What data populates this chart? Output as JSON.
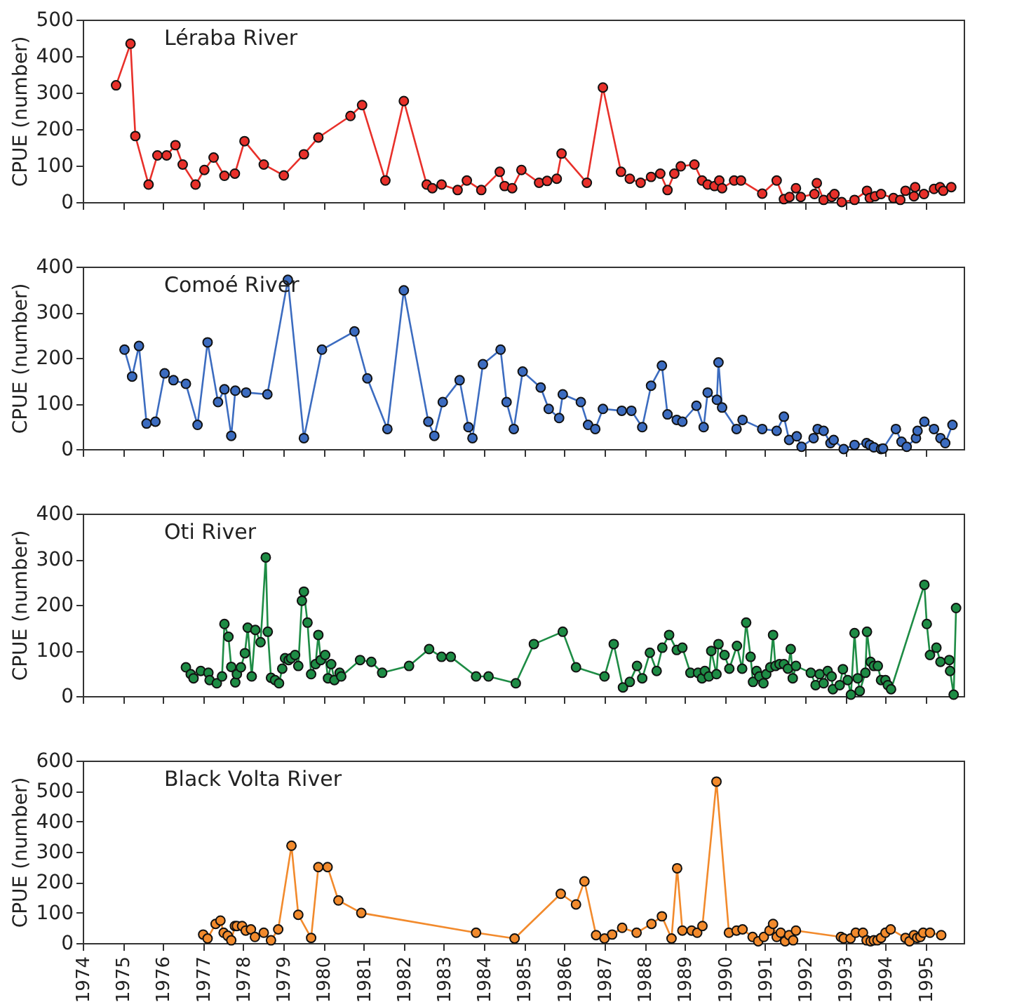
{
  "chart_data": [
    {
      "type": "line",
      "ylabel": "CPUE (number)",
      "xlim": [
        1974,
        1995.95
      ],
      "xticks": [
        1974,
        1975,
        1976,
        1977,
        1978,
        1979,
        1980,
        1981,
        1982,
        1983,
        1984,
        1985,
        1986,
        1987,
        1988,
        1989,
        1990,
        1991,
        1992,
        1993,
        1994,
        1995
      ],
      "ylim": [
        0,
        500
      ],
      "yticks": [
        0,
        100,
        200,
        300,
        400,
        500
      ],
      "tick_labels": "y",
      "grid": false,
      "legend": false,
      "marker": "circle",
      "line_style": "solid",
      "x": [
        1974.83,
        1975.19,
        1975.31,
        1975.64,
        1975.86,
        1976.09,
        1976.31,
        1976.49,
        1976.81,
        1977.03,
        1977.26,
        1977.53,
        1977.79,
        1978.03,
        1978.51,
        1979.01,
        1979.51,
        1979.87,
        1980.67,
        1980.96,
        1981.54,
        1982.0,
        1982.57,
        1982.71,
        1982.94,
        1983.34,
        1983.57,
        1983.93,
        1984.39,
        1984.51,
        1984.7,
        1984.93,
        1985.37,
        1985.57,
        1985.81,
        1985.93,
        1986.56,
        1986.96,
        1987.41,
        1987.63,
        1987.9,
        1988.16,
        1988.39,
        1988.57,
        1988.74,
        1988.9,
        1989.24,
        1989.43,
        1989.57,
        1989.74,
        1989.86,
        1989.93,
        1990.23,
        1990.4,
        1990.93,
        1991.29,
        1991.47,
        1991.61,
        1991.77,
        1991.89,
        1992.23,
        1992.29,
        1992.46,
        1992.66,
        1992.73,
        1992.91,
        1993.23,
        1993.54,
        1993.61,
        1993.74,
        1993.89,
        1994.2,
        1994.37,
        1994.5,
        1994.71,
        1994.74,
        1994.96,
        1995.21,
        1995.36,
        1995.44,
        1995.64
      ],
      "series": [
        {
          "name": "Léraba River",
          "color": "#e8302a",
          "values": [
            320,
            434,
            181,
            48,
            128,
            128,
            156,
            103,
            48,
            88,
            122,
            72,
            78,
            167,
            103,
            73,
            131,
            177,
            236,
            266,
            59,
            277,
            48,
            38,
            48,
            33,
            59,
            33,
            83,
            44,
            38,
            88,
            53,
            58,
            64,
            133,
            53,
            314,
            83,
            64,
            53,
            69,
            78,
            33,
            78,
            98,
            103,
            59,
            48,
            44,
            59,
            38,
            59,
            59,
            23,
            59,
            8,
            14,
            38,
            14,
            22,
            52,
            6,
            14,
            22,
            0,
            6,
            31,
            11,
            16,
            22,
            11,
            6,
            31,
            16,
            41,
            22,
            36,
            41,
            31,
            41
          ]
        }
      ]
    },
    {
      "type": "line",
      "ylabel": "CPUE (number)",
      "xlim": [
        1974,
        1995.95
      ],
      "xticks": [
        1974,
        1975,
        1976,
        1977,
        1978,
        1979,
        1980,
        1981,
        1982,
        1983,
        1984,
        1985,
        1986,
        1987,
        1988,
        1989,
        1990,
        1991,
        1992,
        1993,
        1994,
        1995
      ],
      "ylim": [
        0,
        400
      ],
      "yticks": [
        0,
        100,
        200,
        300,
        400
      ],
      "tick_labels": "y",
      "grid": false,
      "legend": false,
      "marker": "circle",
      "line_style": "solid",
      "x": [
        1975.04,
        1975.23,
        1975.4,
        1975.59,
        1975.81,
        1976.04,
        1976.26,
        1976.57,
        1976.86,
        1977.11,
        1977.37,
        1977.53,
        1977.7,
        1977.8,
        1978.07,
        1978.6,
        1979.11,
        1979.51,
        1979.96,
        1980.77,
        1981.09,
        1981.59,
        1982.0,
        1982.61,
        1982.76,
        1982.97,
        1983.39,
        1983.61,
        1983.71,
        1983.97,
        1984.41,
        1984.56,
        1984.74,
        1984.96,
        1985.41,
        1985.61,
        1985.87,
        1985.96,
        1986.41,
        1986.59,
        1986.77,
        1986.96,
        1987.43,
        1987.67,
        1987.94,
        1988.16,
        1988.43,
        1988.57,
        1988.8,
        1988.94,
        1989.29,
        1989.47,
        1989.57,
        1989.8,
        1989.84,
        1989.93,
        1990.29,
        1990.44,
        1990.93,
        1991.29,
        1991.47,
        1991.6,
        1991.79,
        1991.91,
        1992.21,
        1992.31,
        1992.46,
        1992.63,
        1992.71,
        1992.96,
        1993.23,
        1993.53,
        1993.61,
        1993.71,
        1993.89,
        1993.94,
        1994.26,
        1994.4,
        1994.53,
        1994.76,
        1994.8,
        1994.97,
        1995.21,
        1995.37,
        1995.49,
        1995.67
      ],
      "series": [
        {
          "name": "Comoé River",
          "color": "#3c6cc0",
          "values": [
            218,
            159,
            226,
            56,
            60,
            166,
            151,
            143,
            53,
            234,
            103,
            131,
            29,
            128,
            124,
            120,
            371,
            24,
            218,
            258,
            155,
            44,
            348,
            60,
            29,
            103,
            151,
            48,
            24,
            186,
            218,
            103,
            44,
            170,
            135,
            88,
            68,
            120,
            103,
            53,
            44,
            88,
            84,
            84,
            48,
            139,
            183,
            76,
            64,
            60,
            95,
            48,
            124,
            108,
            190,
            91,
            44,
            64,
            44,
            40,
            71,
            20,
            28,
            5,
            24,
            44,
            40,
            13,
            20,
            0,
            9,
            13,
            9,
            4,
            0,
            1,
            44,
            16,
            5,
            24,
            40,
            60,
            44,
            24,
            13,
            53
          ]
        }
      ]
    },
    {
      "type": "line",
      "ylabel": "CPUE (number)",
      "xlim": [
        1974,
        1995.95
      ],
      "xticks": [
        1974,
        1975,
        1976,
        1977,
        1978,
        1979,
        1980,
        1981,
        1982,
        1983,
        1984,
        1985,
        1986,
        1987,
        1988,
        1989,
        1990,
        1991,
        1992,
        1993,
        1994,
        1995
      ],
      "ylim": [
        0,
        400
      ],
      "yticks": [
        0,
        100,
        200,
        300,
        400
      ],
      "tick_labels": "y",
      "grid": false,
      "legend": false,
      "marker": "circle",
      "line_style": "solid",
      "x": [
        1976.57,
        1976.69,
        1976.76,
        1976.94,
        1977.13,
        1977.16,
        1977.34,
        1977.47,
        1977.53,
        1977.63,
        1977.7,
        1977.8,
        1977.84,
        1977.94,
        1978.04,
        1978.11,
        1978.21,
        1978.3,
        1978.43,
        1978.56,
        1978.61,
        1978.69,
        1978.79,
        1978.89,
        1978.97,
        1979.04,
        1979.13,
        1979.19,
        1979.29,
        1979.37,
        1979.46,
        1979.51,
        1979.6,
        1979.69,
        1979.8,
        1979.87,
        1979.93,
        1980.04,
        1980.11,
        1980.19,
        1980.27,
        1980.4,
        1980.44,
        1980.91,
        1981.19,
        1981.46,
        1982.13,
        1982.63,
        1982.94,
        1983.17,
        1983.8,
        1984.11,
        1984.79,
        1985.24,
        1985.96,
        1986.29,
        1987.0,
        1987.23,
        1987.46,
        1987.63,
        1987.81,
        1987.94,
        1988.13,
        1988.3,
        1988.44,
        1988.61,
        1988.8,
        1988.94,
        1989.14,
        1989.33,
        1989.43,
        1989.5,
        1989.6,
        1989.66,
        1989.79,
        1989.84,
        1989.99,
        1990.11,
        1990.3,
        1990.43,
        1990.53,
        1990.64,
        1990.7,
        1990.79,
        1990.86,
        1990.96,
        1991.03,
        1991.13,
        1991.2,
        1991.26,
        1991.36,
        1991.47,
        1991.57,
        1991.64,
        1991.69,
        1991.77,
        1992.14,
        1992.26,
        1992.36,
        1992.46,
        1992.56,
        1992.66,
        1992.69,
        1992.86,
        1992.94,
        1993.06,
        1993.14,
        1993.23,
        1993.31,
        1993.36,
        1993.5,
        1993.54,
        1993.63,
        1993.71,
        1993.81,
        1993.89,
        1994.0,
        1994.06,
        1994.14,
        1994.97,
        1995.03,
        1995.11,
        1995.27,
        1995.37,
        1995.59,
        1995.61,
        1995.7,
        1995.76
      ],
      "series": [
        {
          "name": "Oti River",
          "color": "#1e8c45",
          "values": [
            63,
            48,
            39,
            55,
            51,
            35,
            28,
            43,
            158,
            130,
            64,
            30,
            48,
            63,
            94,
            150,
            43,
            145,
            118,
            304,
            141,
            40,
            35,
            28,
            60,
            83,
            79,
            83,
            90,
            66,
            209,
            229,
            161,
            48,
            70,
            134,
            79,
            90,
            39,
            70,
            35,
            51,
            43,
            79,
            75,
            51,
            66,
            103,
            86,
            86,
            43,
            43,
            28,
            114,
            141,
            63,
            43,
            114,
            19,
            31,
            66,
            39,
            95,
            55,
            106,
            134,
            101,
            106,
            51,
            51,
            39,
            55,
            43,
            99,
            48,
            114,
            90,
            60,
            110,
            60,
            161,
            86,
            31,
            55,
            43,
            28,
            48,
            63,
            134,
            66,
            70,
            70,
            60,
            103,
            39,
            66,
            51,
            24,
            48,
            28,
            55,
            43,
            15,
            24,
            59,
            35,
            3,
            138,
            39,
            11,
            51,
            141,
            75,
            66,
            66,
            35,
            35,
            24,
            15,
            244,
            158,
            90,
            106,
            75,
            79,
            55,
            3,
            193
          ]
        }
      ]
    },
    {
      "type": "line",
      "ylabel": "CPUE (number)",
      "xlim": [
        1974,
        1995.95
      ],
      "xticks": [
        1974,
        1975,
        1976,
        1977,
        1978,
        1979,
        1980,
        1981,
        1982,
        1983,
        1984,
        1985,
        1986,
        1987,
        1988,
        1989,
        1990,
        1991,
        1992,
        1993,
        1994,
        1995
      ],
      "ylim": [
        0,
        600
      ],
      "yticks": [
        0,
        100,
        200,
        300,
        400,
        500,
        600
      ],
      "grid": false,
      "legend": false,
      "marker": "circle",
      "line_style": "solid",
      "x": [
        1977.0,
        1977.11,
        1977.31,
        1977.43,
        1977.51,
        1977.61,
        1977.7,
        1977.79,
        1977.84,
        1977.97,
        1978.06,
        1978.19,
        1978.29,
        1978.51,
        1978.69,
        1978.87,
        1979.2,
        1979.37,
        1979.69,
        1979.87,
        1980.1,
        1980.37,
        1980.94,
        1983.8,
        1984.76,
        1985.91,
        1986.29,
        1986.5,
        1986.79,
        1987.0,
        1987.19,
        1987.44,
        1987.8,
        1988.17,
        1988.43,
        1988.67,
        1988.81,
        1988.94,
        1989.17,
        1989.31,
        1989.44,
        1989.79,
        1990.1,
        1990.29,
        1990.44,
        1990.69,
        1990.83,
        1990.97,
        1991.11,
        1991.2,
        1991.29,
        1991.39,
        1991.5,
        1991.6,
        1991.7,
        1991.77,
        1992.89,
        1992.96,
        1993.13,
        1993.26,
        1993.44,
        1993.53,
        1993.63,
        1993.71,
        1993.8,
        1993.89,
        1994.0,
        1994.13,
        1994.5,
        1994.6,
        1994.71,
        1994.79,
        1994.87,
        1994.94,
        1995.11,
        1995.39
      ],
      "series": [
        {
          "name": "Black Volta River",
          "color": "#f28a2c",
          "values": [
            28,
            15,
            63,
            74,
            34,
            24,
            9,
            56,
            56,
            56,
            41,
            45,
            20,
            34,
            9,
            45,
            320,
            93,
            17,
            250,
            250,
            140,
            99,
            34,
            15,
            162,
            127,
            203,
            26,
            15,
            28,
            50,
            34,
            63,
            88,
            15,
            246,
            41,
            41,
            34,
            56,
            531,
            34,
            41,
            45,
            20,
            6,
            20,
            41,
            63,
            20,
            34,
            6,
            26,
            9,
            41,
            20,
            15,
            15,
            34,
            34,
            9,
            6,
            9,
            9,
            17,
            34,
            45,
            17,
            6,
            26,
            17,
            20,
            34,
            34,
            26
          ]
        }
      ]
    }
  ]
}
